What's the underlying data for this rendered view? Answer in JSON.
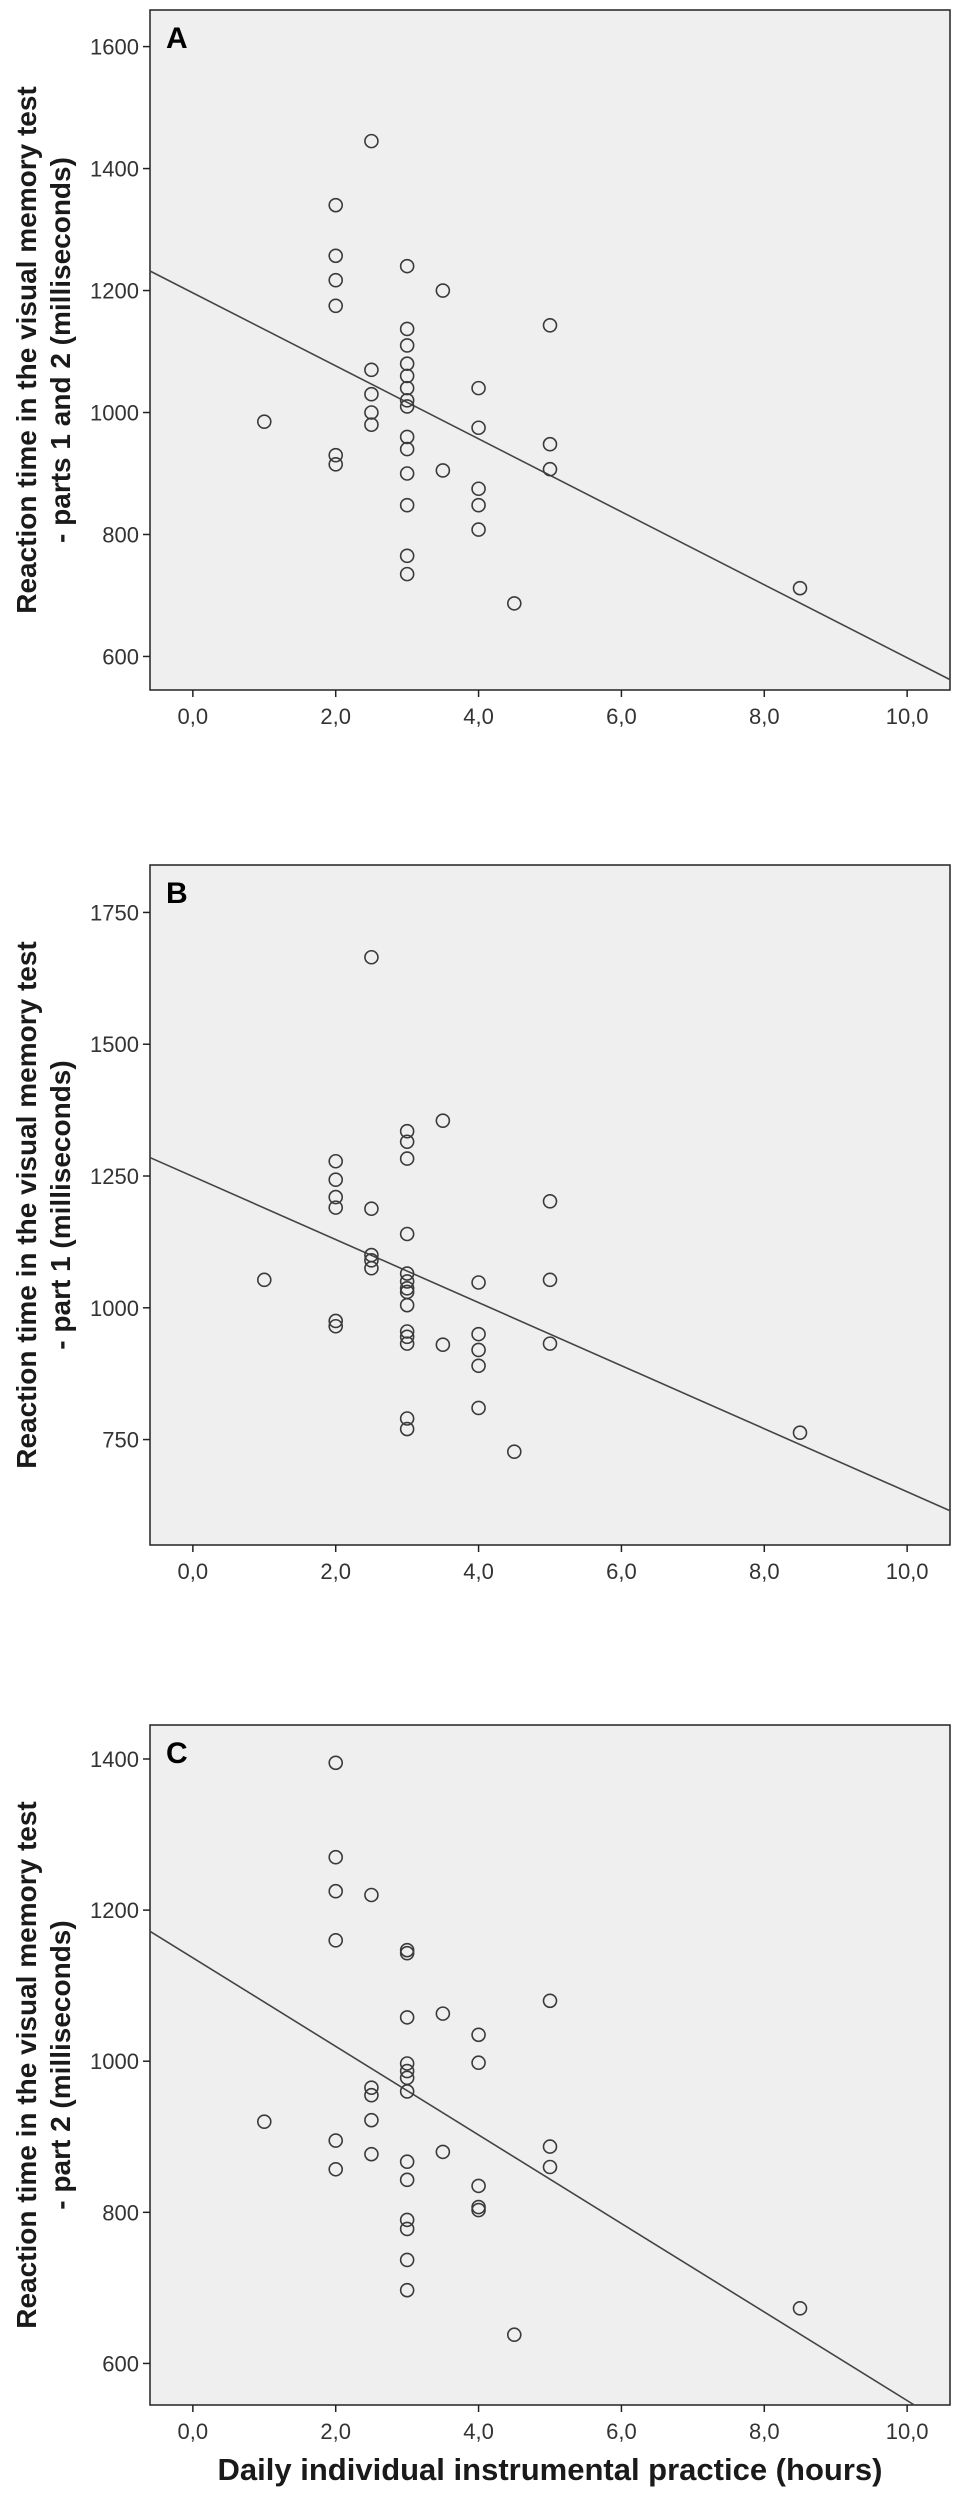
{
  "colors": {
    "plot_bg": "#efefef",
    "frame": "#222222",
    "marker": "#3a3a3a",
    "fit_line": "#444444"
  },
  "x_axis_label": "Daily individual instrumental practice (hours)",
  "chart_data": [
    {
      "type": "scatter",
      "panel": "A",
      "ylabel_line1": "Reaction time in the visual memory test",
      "ylabel_line2": "- parts 1 and 2 (milliseconds)",
      "xlim": [
        -0.6,
        10.6
      ],
      "ylim": [
        545,
        1660
      ],
      "x_ticks": [
        0,
        2,
        4,
        6,
        8,
        10
      ],
      "x_tick_labels": [
        "0,0",
        "2,0",
        "4,0",
        "6,0",
        "8,0",
        "10,0"
      ],
      "y_ticks": [
        600,
        800,
        1000,
        1200,
        1400,
        1600
      ],
      "y_tick_labels": [
        "600",
        "800",
        "1000",
        "1200",
        "1400",
        "1600"
      ],
      "grid": false,
      "fit_line": {
        "x": [
          -0.6,
          10.6
        ],
        "y": [
          1232,
          562
        ]
      },
      "points": [
        [
          1,
          985
        ],
        [
          2,
          1340
        ],
        [
          2,
          1257
        ],
        [
          2,
          1217
        ],
        [
          2,
          1175
        ],
        [
          2,
          930
        ],
        [
          2,
          915
        ],
        [
          2.5,
          1445
        ],
        [
          2.5,
          1070
        ],
        [
          2.5,
          1030
        ],
        [
          2.5,
          1000
        ],
        [
          2.5,
          980
        ],
        [
          3,
          1240
        ],
        [
          3,
          1137
        ],
        [
          3,
          1110
        ],
        [
          3,
          1080
        ],
        [
          3,
          1060
        ],
        [
          3,
          1040
        ],
        [
          3,
          1020
        ],
        [
          3,
          1010
        ],
        [
          3,
          960
        ],
        [
          3,
          940
        ],
        [
          3,
          900
        ],
        [
          3,
          848
        ],
        [
          3,
          765
        ],
        [
          3,
          735
        ],
        [
          3.5,
          1200
        ],
        [
          3.5,
          905
        ],
        [
          4,
          1040
        ],
        [
          4,
          975
        ],
        [
          4,
          875
        ],
        [
          4,
          848
        ],
        [
          4,
          808
        ],
        [
          4.5,
          687
        ],
        [
          5,
          1143
        ],
        [
          5,
          948
        ],
        [
          5,
          907
        ],
        [
          8.5,
          712
        ]
      ]
    },
    {
      "type": "scatter",
      "panel": "B",
      "ylabel_line1": "Reaction time in the visual memory test",
      "ylabel_line2": "- part 1 (milliseconds)",
      "xlim": [
        -0.6,
        10.6
      ],
      "ylim": [
        550,
        1840
      ],
      "x_ticks": [
        0,
        2,
        4,
        6,
        8,
        10
      ],
      "x_tick_labels": [
        "0,0",
        "2,0",
        "4,0",
        "6,0",
        "8,0",
        "10,0"
      ],
      "y_ticks": [
        750,
        1000,
        1250,
        1500,
        1750
      ],
      "y_tick_labels": [
        "750",
        "1000",
        "1250",
        "1500",
        "1750"
      ],
      "grid": false,
      "fit_line": {
        "x": [
          -0.6,
          10.6
        ],
        "y": [
          1285,
          615
        ]
      },
      "points": [
        [
          1,
          1053
        ],
        [
          2,
          1278
        ],
        [
          2,
          1243
        ],
        [
          2,
          1210
        ],
        [
          2,
          1190
        ],
        [
          2,
          975
        ],
        [
          2,
          965
        ],
        [
          2.5,
          1665
        ],
        [
          2.5,
          1188
        ],
        [
          2.5,
          1100
        ],
        [
          2.5,
          1090
        ],
        [
          2.5,
          1075
        ],
        [
          3,
          1335
        ],
        [
          3,
          1315
        ],
        [
          3,
          1283
        ],
        [
          3,
          1140
        ],
        [
          3,
          1065
        ],
        [
          3,
          1050
        ],
        [
          3,
          1037
        ],
        [
          3,
          1030
        ],
        [
          3,
          1005
        ],
        [
          3,
          955
        ],
        [
          3,
          945
        ],
        [
          3,
          932
        ],
        [
          3,
          790
        ],
        [
          3,
          770
        ],
        [
          3.5,
          1355
        ],
        [
          3.5,
          930
        ],
        [
          4,
          1048
        ],
        [
          4,
          950
        ],
        [
          4,
          920
        ],
        [
          4,
          890
        ],
        [
          4,
          810
        ],
        [
          4.5,
          727
        ],
        [
          5,
          1202
        ],
        [
          5,
          1053
        ],
        [
          5,
          932
        ],
        [
          8.5,
          763
        ]
      ]
    },
    {
      "type": "scatter",
      "panel": "C",
      "ylabel_line1": "Reaction time in the visual memory test",
      "ylabel_line2": "- part 2 (milliseconds)",
      "xlim": [
        -0.6,
        10.6
      ],
      "ylim": [
        545,
        1445
      ],
      "x_ticks": [
        0,
        2,
        4,
        6,
        8,
        10
      ],
      "x_tick_labels": [
        "0,0",
        "2,0",
        "4,0",
        "6,0",
        "8,0",
        "10,0"
      ],
      "y_ticks": [
        600,
        800,
        1000,
        1200,
        1400
      ],
      "y_tick_labels": [
        "600",
        "800",
        "1000",
        "1200",
        "1400"
      ],
      "grid": false,
      "fit_line": {
        "x": [
          -0.6,
          10.1
        ],
        "y": [
          1172,
          545
        ]
      },
      "points": [
        [
          1,
          920
        ],
        [
          2,
          1395
        ],
        [
          2,
          1270
        ],
        [
          2,
          1225
        ],
        [
          2,
          1160
        ],
        [
          2,
          895
        ],
        [
          2,
          857
        ],
        [
          2.5,
          1220
        ],
        [
          2.5,
          965
        ],
        [
          2.5,
          955
        ],
        [
          2.5,
          922
        ],
        [
          2.5,
          877
        ],
        [
          3,
          1147
        ],
        [
          3,
          1143
        ],
        [
          3,
          1058
        ],
        [
          3,
          997
        ],
        [
          3,
          987
        ],
        [
          3,
          978
        ],
        [
          3,
          960
        ],
        [
          3,
          867
        ],
        [
          3,
          843
        ],
        [
          3,
          790
        ],
        [
          3,
          778
        ],
        [
          3,
          737
        ],
        [
          3,
          697
        ],
        [
          3.5,
          1063
        ],
        [
          3.5,
          880
        ],
        [
          4,
          1035
        ],
        [
          4,
          998
        ],
        [
          4,
          835
        ],
        [
          4,
          807
        ],
        [
          4,
          803
        ],
        [
          4.5,
          638
        ],
        [
          5,
          1080
        ],
        [
          5,
          887
        ],
        [
          5,
          860
        ],
        [
          8.5,
          673
        ]
      ]
    }
  ]
}
